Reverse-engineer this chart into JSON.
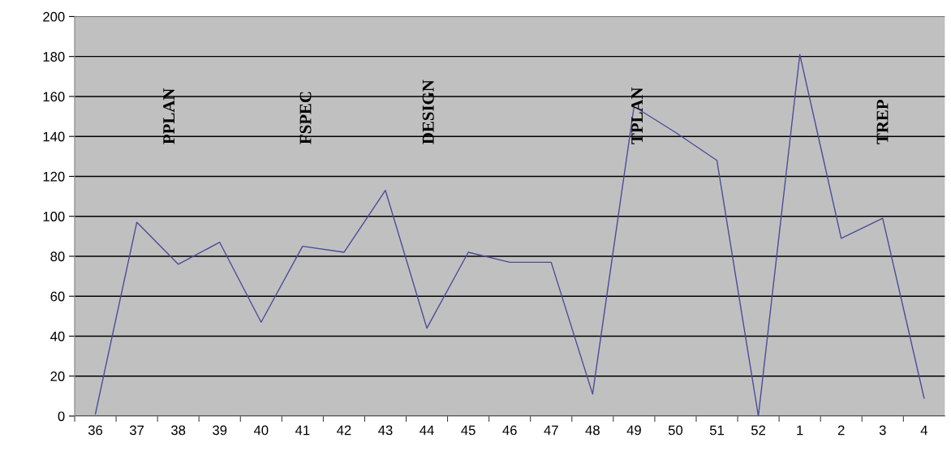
{
  "chart_data": {
    "type": "line",
    "categories": [
      "36",
      "37",
      "38",
      "39",
      "40",
      "41",
      "42",
      "43",
      "44",
      "45",
      "46",
      "47",
      "48",
      "49",
      "50",
      "51",
      "52",
      "1",
      "2",
      "3",
      "4"
    ],
    "series": [
      {
        "color": "#4b4b9b",
        "values": [
          1,
          97,
          76,
          87,
          47,
          85,
          82,
          113,
          44,
          82,
          77,
          77,
          11,
          155,
          142,
          128,
          0,
          181,
          89,
          99,
          9
        ]
      }
    ],
    "ylim": [
      0,
      200
    ],
    "yticks": [
      0,
      20,
      40,
      60,
      80,
      100,
      120,
      140,
      160,
      180,
      200
    ],
    "grid": "y",
    "marker": "none",
    "annotations": [
      "PPLAN",
      "FSPEC",
      "DESIGN",
      "TPLAN",
      "TREP"
    ]
  }
}
